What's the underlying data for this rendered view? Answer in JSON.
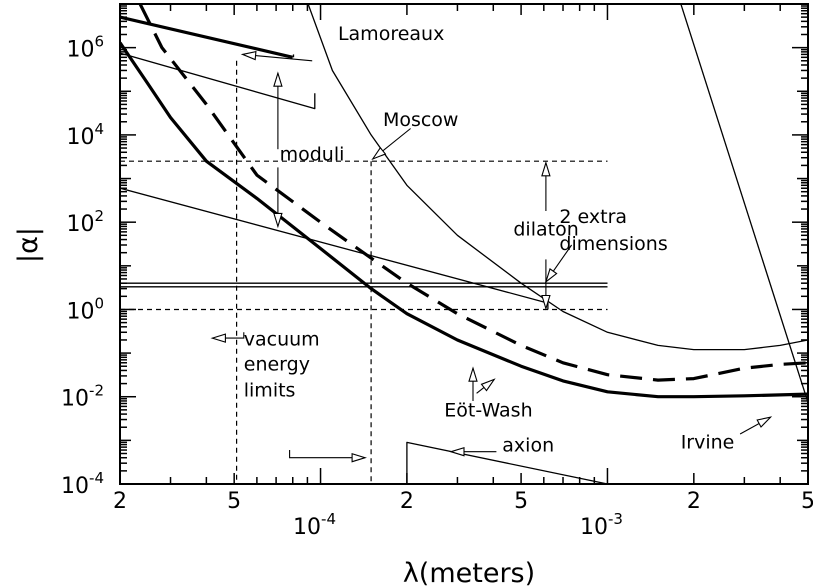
{
  "chart_data": {
    "type": "line",
    "xlabel": "λ(meters)",
    "ylabel": "|α|",
    "x_scale": "log",
    "y_scale": "log",
    "xlim": [
      2e-05,
      0.005
    ],
    "ylim": [
      0.0001,
      10000000
    ],
    "x_minor_tick_labels": [
      "2",
      "5",
      "2",
      "5",
      "2",
      "5"
    ],
    "x_major_tick_labels": [
      {
        "base": "10",
        "exp": "-4"
      },
      {
        "base": "10",
        "exp": "-3"
      }
    ],
    "y_tick_labels": [
      {
        "base": "10",
        "exp": "-4"
      },
      {
        "base": "10",
        "exp": "-2"
      },
      {
        "base": "10",
        "exp": "0"
      },
      {
        "base": "10",
        "exp": "2"
      },
      {
        "base": "10",
        "exp": "4"
      },
      {
        "base": "10",
        "exp": "6"
      }
    ],
    "series": [
      {
        "style": "thin",
        "points": [
          [
            9.05e-05,
            10000000
          ],
          [
            0.00011,
            300000
          ],
          [
            0.00015,
            10000
          ],
          [
            0.0002,
            700
          ],
          [
            0.0003,
            50
          ],
          [
            0.0005,
            4
          ],
          [
            0.0007,
            0.9
          ],
          [
            0.001,
            0.3
          ],
          [
            0.0015,
            0.15
          ],
          [
            0.002,
            0.12
          ],
          [
            0.003,
            0.12
          ],
          [
            0.004,
            0.15
          ],
          [
            0.005,
            0.2
          ]
        ]
      },
      {
        "style": "thick-dashed",
        "points": [
          [
            2.35e-05,
            10000000
          ],
          [
            2.8e-05,
            1000000
          ],
          [
            4e-05,
            50000
          ],
          [
            6e-05,
            1200
          ],
          [
            0.0001,
            100
          ],
          [
            0.00015,
            15
          ],
          [
            0.0002,
            4
          ],
          [
            0.0003,
            0.8
          ],
          [
            0.0005,
            0.15
          ],
          [
            0.0007,
            0.06
          ],
          [
            0.001,
            0.032
          ],
          [
            0.0015,
            0.024
          ],
          [
            0.002,
            0.026
          ],
          [
            0.003,
            0.045
          ],
          [
            0.004,
            0.055
          ],
          [
            0.005,
            0.06
          ]
        ]
      },
      {
        "style": "thick",
        "points": [
          [
            2e-05,
            1300000
          ],
          [
            2.5e-05,
            150000
          ],
          [
            3e-05,
            25000
          ],
          [
            4e-05,
            2500
          ],
          [
            6e-05,
            350
          ],
          [
            0.0001,
            25
          ],
          [
            0.00015,
            3
          ],
          [
            0.0002,
            0.8
          ],
          [
            0.0003,
            0.2
          ],
          [
            0.0005,
            0.05
          ],
          [
            0.0007,
            0.023
          ],
          [
            0.001,
            0.013
          ],
          [
            0.0015,
            0.01
          ],
          [
            0.002,
            0.01
          ],
          [
            0.003,
            0.0105
          ],
          [
            0.004,
            0.011
          ],
          [
            0.005,
            0.0115
          ]
        ]
      },
      {
        "style": "thick",
        "points": [
          [
            2e-05,
            5000000
          ],
          [
            8e-05,
            600000
          ]
        ]
      },
      {
        "style": "thin",
        "points": [
          [
            8.05e-05,
            600000
          ],
          [
            8.05e-05,
            700000
          ]
        ]
      },
      {
        "style": "thin",
        "points": [
          [
            2e-05,
            750000
          ],
          [
            9.55e-05,
            40000
          ],
          [
            9.55e-05,
            90000
          ]
        ]
      },
      {
        "style": "thin",
        "points": [
          [
            2e-05,
            600
          ],
          [
            0.00062,
            1.4
          ],
          [
            0.00062,
            1.0
          ]
        ]
      },
      {
        "style": "thin",
        "points": [
          [
            0.00158,
            150000000
          ],
          [
            0.0053,
            0.0022
          ]
        ]
      },
      {
        "style": "thin",
        "points": [
          [
            0.0002,
            0.0001
          ],
          [
            0.0002,
            0.0009
          ],
          [
            0.001,
            0.0001
          ]
        ]
      },
      {
        "style": "thin",
        "points": [
          [
            2e-05,
            4
          ],
          [
            0.001,
            4
          ]
        ]
      },
      {
        "style": "thin",
        "points": [
          [
            2e-05,
            3.3
          ],
          [
            0.001,
            3.3
          ]
        ]
      },
      {
        "style": "dashed",
        "points": [
          [
            2e-05,
            2500
          ],
          [
            0.001,
            2500
          ]
        ]
      },
      {
        "style": "dashed",
        "points": [
          [
            2e-05,
            1
          ],
          [
            0.001,
            1
          ]
        ]
      },
      {
        "style": "dashed",
        "points": [
          [
            5.1e-05,
            500000
          ],
          [
            5.1e-05,
            0.0001
          ]
        ]
      },
      {
        "style": "dashed",
        "points": [
          [
            0.00015,
            2500
          ],
          [
            0.00015,
            0.0001
          ]
        ]
      }
    ],
    "annotations": [
      {
        "text": "Lamoreaux",
        "x": 0.000115,
        "y": 1500000
      },
      {
        "text": "Moscow",
        "x": 0.000165,
        "y": 16000
      },
      {
        "text": "moduli",
        "x": 7.2e-05,
        "y": 2600
      },
      {
        "text": "dilaton",
        "x": 0.00047,
        "y": 50
      },
      {
        "text": "2  extra",
        "x": 0.00068,
        "y": 95
      },
      {
        "text": "dimensions",
        "x": 0.00068,
        "y": 23
      },
      {
        "text": "vacuum",
        "x": 5.4e-05,
        "y": 0.15
      },
      {
        "text": "energy",
        "x": 5.4e-05,
        "y": 0.04
      },
      {
        "text": "limits",
        "x": 5.4e-05,
        "y": 0.01
      },
      {
        "text": "Eöt-Wash",
        "x": 0.00027,
        "y": 0.0035
      },
      {
        "text": "axion",
        "x": 0.00043,
        "y": 0.00055
      },
      {
        "text": "Irvine",
        "x": 0.0018,
        "y": 0.00065
      }
    ],
    "arrows": [
      [
        [
          9.35e-05,
          500000
        ],
        [
          5.35e-05,
          700000
        ]
      ],
      [
        [
          0.000206,
          14000
        ],
        [
          0.000152,
          2800
        ]
      ],
      [
        [
          7.1e-05,
          1800
        ],
        [
          7.1e-05,
          80
        ]
      ],
      [
        [
          7.1e-05,
          4700
        ],
        [
          7.1e-05,
          260000
        ]
      ],
      [
        [
          0.00061,
          14
        ],
        [
          0.00061,
          1.05
        ]
      ],
      [
        [
          0.00061,
          180
        ],
        [
          0.00061,
          2300
        ]
      ],
      [
        [
          0.00075,
          30
        ],
        [
          0.00061,
          4.3
        ]
      ],
      [
        [
          5.4e-05,
          0.3
        ],
        [
          5.4e-05,
          0.22
        ],
        [
          4.2e-05,
          0.22
        ]
      ],
      [
        [
          7.8e-05,
          0.0006
        ],
        [
          7.8e-05,
          0.0004
        ],
        [
          0.000143,
          0.0004
        ]
      ],
      [
        [
          0.00034,
          0.008
        ],
        [
          0.00034,
          0.045
        ]
      ],
      [
        [
          0.00035,
          0.012
        ],
        [
          0.000403,
          0.025
        ]
      ],
      [
        [
          0.00041,
          0.00055
        ],
        [
          0.000285,
          0.00055
        ]
      ],
      [
        [
          0.0029,
          0.0014
        ],
        [
          0.0037,
          0.0034
        ]
      ]
    ],
    "grid": false,
    "legend": "none"
  }
}
